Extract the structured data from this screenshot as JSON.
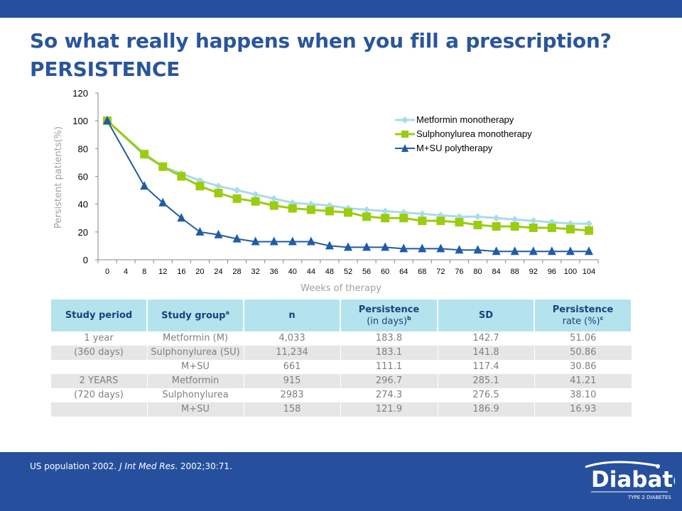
{
  "title": {
    "line1": "So what really happens when you fill a prescription?",
    "line2": "PERSISTENCE"
  },
  "chart_data": {
    "type": "line",
    "xlabel": "Weeks of therapy",
    "ylabel": "Persistent patients(%)",
    "ylim": [
      0,
      120
    ],
    "yticks": [
      0,
      20,
      40,
      60,
      80,
      100,
      120
    ],
    "x": [
      0,
      4,
      8,
      12,
      16,
      20,
      24,
      28,
      32,
      36,
      40,
      44,
      48,
      52,
      56,
      60,
      64,
      68,
      72,
      76,
      80,
      84,
      88,
      92,
      96,
      100,
      104
    ],
    "legend_position": "top-right",
    "grid": false,
    "series": [
      {
        "name": "Metformin monotherapy",
        "color": "#a8dce8",
        "marker": "diamond",
        "line_width": 3,
        "values": [
          100,
          null,
          75,
          67,
          62,
          57,
          53,
          50,
          47,
          44,
          41,
          40,
          39,
          37,
          36,
          35,
          34,
          33,
          32,
          31,
          31,
          30,
          29,
          28,
          27,
          26,
          26
        ]
      },
      {
        "name": "Sulphonylurea monotherapy",
        "color": "#9acd0f",
        "marker": "square",
        "line_width": 3,
        "values": [
          100,
          null,
          76,
          67,
          60,
          53,
          48,
          44,
          42,
          39,
          37,
          36,
          35,
          34,
          31,
          30,
          30,
          28,
          28,
          27,
          25,
          24,
          24,
          23,
          23,
          22,
          21
        ]
      },
      {
        "name": "M+SU polytherapy",
        "color": "#1f5ca8",
        "marker": "triangle",
        "line_width": 2,
        "values": [
          100,
          null,
          53,
          41,
          30,
          20,
          18,
          15,
          13,
          13,
          13,
          13,
          10,
          9,
          9,
          9,
          8,
          8,
          8,
          7,
          7,
          6,
          6,
          6,
          6,
          6,
          6
        ]
      }
    ]
  },
  "table": {
    "headers": [
      {
        "main": "Study period",
        "sub": "",
        "sup": ""
      },
      {
        "main": "Study group",
        "sub": "",
        "sup": "a"
      },
      {
        "main": "n",
        "sub": "",
        "sup": ""
      },
      {
        "main": "Persistence",
        "sub": "(in days)",
        "sup": "b"
      },
      {
        "main": "SD",
        "sub": "",
        "sup": ""
      },
      {
        "main": "Persistence",
        "sub": "rate (%)",
        "sup": "c"
      }
    ],
    "rows": [
      [
        "1 year",
        "Metformin (M)",
        "4,033",
        "183.8",
        "142.7",
        "51.06"
      ],
      [
        "(360 days)",
        "Sulphonylurea (SU)",
        "11,234",
        "183.1",
        "141.8",
        "50.86"
      ],
      [
        "",
        "M+SU",
        "661",
        "111.1",
        "117.4",
        "30.86"
      ],
      [
        "2 YEARS",
        "Metformin",
        "915",
        "296.7",
        "285.1",
        "41.21"
      ],
      [
        "(720 days)",
        "Sulphonylurea",
        "2983",
        "274.3",
        "276.5",
        "38.10"
      ],
      [
        "",
        "M+SU",
        "158",
        "121.9",
        "186.9",
        "16.93"
      ]
    ]
  },
  "footer": {
    "source_plain": "US population 2002. ",
    "source_journal": "J Int Med Res",
    "source_rest": ". 2002;30:71."
  },
  "logo": {
    "name": "Diabate",
    "tagline": "TYPE 2 DIABETES"
  },
  "colors": {
    "brand_blue": "#26509d",
    "title_blue": "#2a559b",
    "header_fill": "#b4e3ee",
    "shade_row": "#e6e6e6"
  }
}
